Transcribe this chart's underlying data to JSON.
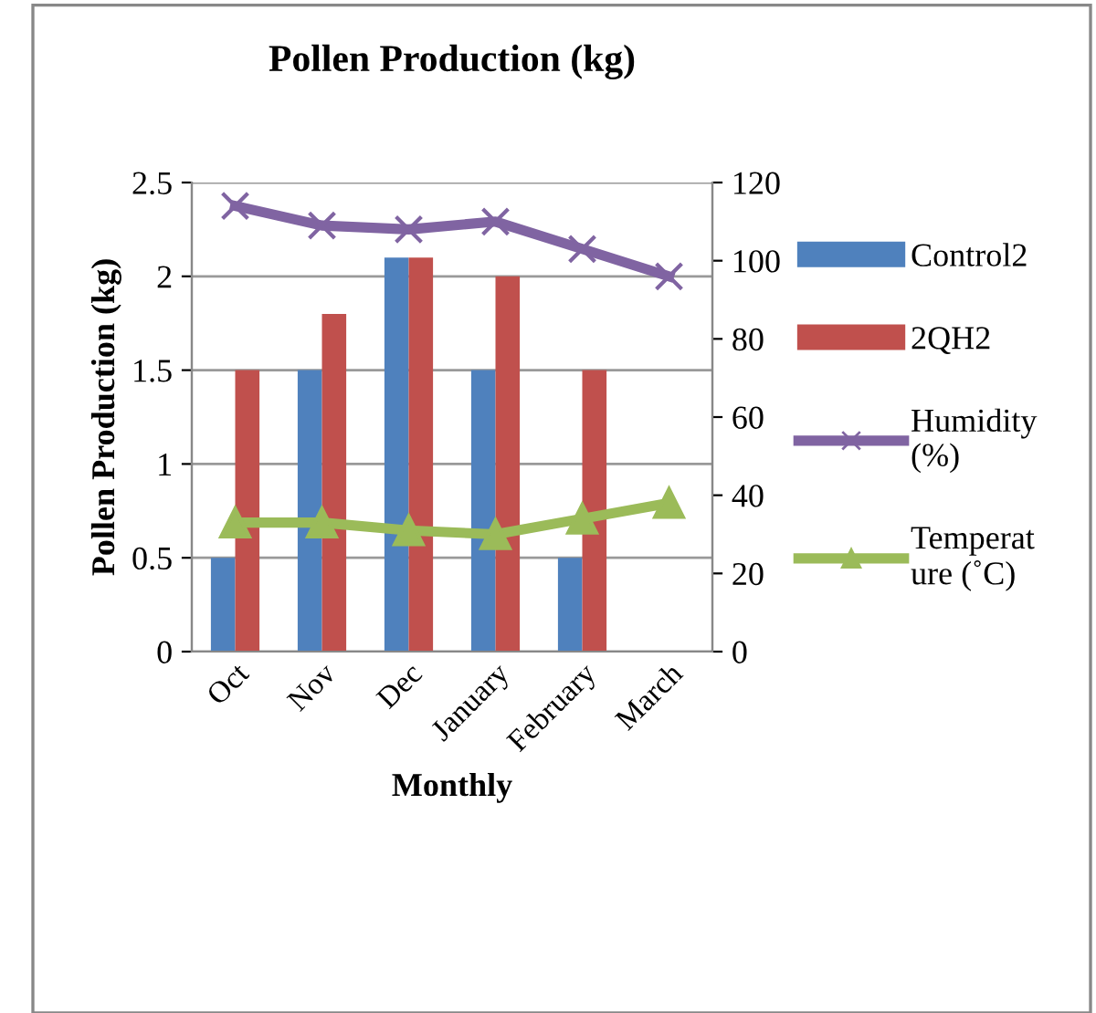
{
  "chart_data": {
    "type": "bar",
    "title": "Pollen Production (kg)",
    "xlabel": "Monthly",
    "ylabel": "Pollen Production (kg)",
    "categories": [
      "Oct",
      "Nov",
      "Dec",
      "January",
      "February",
      "March"
    ],
    "series": [
      {
        "name": "Control2",
        "color": "#4f81bd",
        "values": [
          0.5,
          1.5,
          2.1,
          1.5,
          0.5,
          null
        ]
      },
      {
        "name": "2QH2",
        "color": "#c0504d",
        "values": [
          1.5,
          1.8,
          2.1,
          2.0,
          1.5,
          null
        ]
      },
      {
        "name": "Humidity\n(%)",
        "type": "line",
        "axis": "y2",
        "marker": "cross",
        "color": "#8064a2",
        "values": [
          114,
          109,
          108,
          110,
          103,
          96
        ]
      },
      {
        "name": "Temperat\nure (˚C)",
        "type": "line",
        "axis": "y2",
        "marker": "triangle",
        "color": "#9bbb59",
        "values": [
          33,
          33,
          31,
          30,
          34,
          38
        ]
      }
    ],
    "ylim": [
      0,
      2.5
    ],
    "yticks": [
      0,
      0.5,
      1,
      1.5,
      2,
      2.5
    ],
    "y2lim": [
      0,
      120
    ],
    "y2ticks": [
      0,
      20,
      40,
      60,
      80,
      100,
      120
    ],
    "grid": "y",
    "legend": "right"
  }
}
